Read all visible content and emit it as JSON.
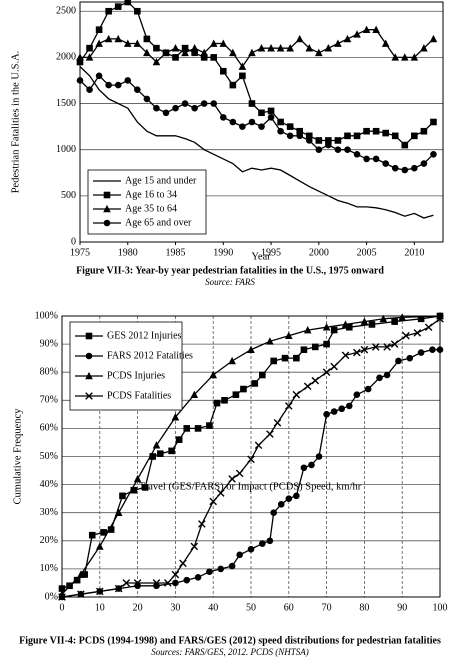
{
  "chart_data": [
    {
      "type": "line",
      "y_label": "Pedestrian Fatalities in the U.S.A.",
      "x_label": "Year",
      "caption": "Figure VII-3: Year-by year pedestrian fatalities in the U.S., 1975 onward",
      "source": "Source: FARS",
      "x": [
        1975,
        1976,
        1977,
        1978,
        1979,
        1980,
        1981,
        1982,
        1983,
        1984,
        1985,
        1986,
        1987,
        1988,
        1989,
        1990,
        1991,
        1992,
        1993,
        1994,
        1995,
        1996,
        1997,
        1998,
        1999,
        2000,
        2001,
        2002,
        2003,
        2004,
        2005,
        2006,
        2007,
        2008,
        2009,
        2010,
        2011,
        2012
      ],
      "xlim": [
        1975,
        2013
      ],
      "xticks": [
        1975,
        1980,
        1985,
        1990,
        1995,
        2000,
        2005,
        2010
      ],
      "ylim": [
        0,
        2600
      ],
      "yticks": [
        0,
        500,
        1000,
        1500,
        2000,
        2500
      ],
      "grid": "y",
      "legend": "lower left",
      "series": [
        {
          "name": "Age 15 and under",
          "color": "#000000",
          "marker": "none",
          "values": [
            1900,
            1800,
            1650,
            1550,
            1500,
            1450,
            1300,
            1200,
            1150,
            1150,
            1150,
            1120,
            1080,
            1000,
            950,
            900,
            850,
            760,
            800,
            780,
            800,
            780,
            720,
            660,
            600,
            550,
            500,
            450,
            420,
            380,
            380,
            370,
            350,
            320,
            280,
            310,
            260,
            290
          ]
        },
        {
          "name": "Age 16 to 34",
          "color": "#000000",
          "marker": "square",
          "values": [
            1950,
            2100,
            2300,
            2500,
            2550,
            2600,
            2500,
            2200,
            2100,
            2050,
            2000,
            2100,
            2050,
            2000,
            2000,
            1850,
            1700,
            1800,
            1500,
            1400,
            1420,
            1300,
            1250,
            1200,
            1150,
            1100,
            1100,
            1100,
            1150,
            1150,
            1200,
            1200,
            1180,
            1150,
            1050,
            1150,
            1200,
            1300
          ]
        },
        {
          "name": "Age 35 to 64",
          "color": "#000000",
          "marker": "triangle",
          "values": [
            2000,
            2000,
            2150,
            2200,
            2200,
            2150,
            2150,
            2050,
            1950,
            2050,
            2100,
            2050,
            2100,
            2050,
            2150,
            2150,
            2050,
            1900,
            2050,
            2100,
            2100,
            2100,
            2100,
            2200,
            2100,
            2050,
            2100,
            2150,
            2200,
            2250,
            2300,
            2300,
            2150,
            2000,
            2000,
            2000,
            2100,
            2200
          ]
        },
        {
          "name": "Age 65 and over",
          "color": "#000000",
          "marker": "circle",
          "values": [
            1750,
            1650,
            1800,
            1700,
            1700,
            1750,
            1650,
            1550,
            1450,
            1400,
            1450,
            1500,
            1450,
            1500,
            1500,
            1350,
            1300,
            1250,
            1300,
            1250,
            1350,
            1200,
            1150,
            1150,
            1100,
            1000,
            1050,
            1000,
            1000,
            950,
            900,
            900,
            850,
            800,
            780,
            800,
            850,
            950
          ]
        }
      ]
    },
    {
      "type": "line",
      "y_label": "Cumulative Frequency",
      "x_label": "Travel (GES/FARS) or Impact (PCDS) Speed, km/hr",
      "caption": "Figure VII-4: PCDS (1994-1998) and FARS/GES (2012) speed distributions for pedestrian fatalities",
      "source": "Sources: FARS/GES, 2012. PCDS (NHTSA)",
      "xlim": [
        0,
        100
      ],
      "xticks": [
        0,
        10,
        20,
        30,
        40,
        50,
        60,
        70,
        80,
        90,
        100
      ],
      "ylim": [
        0,
        100
      ],
      "yticks": [
        {
          "value": 0,
          "label": "0%"
        },
        {
          "value": 10,
          "label": "10%"
        },
        {
          "value": 20,
          "label": "20%"
        },
        {
          "value": 30,
          "label": "30%"
        },
        {
          "value": 40,
          "label": "40%"
        },
        {
          "value": 50,
          "label": "50%"
        },
        {
          "value": 60,
          "label": "60%"
        },
        {
          "value": 70,
          "label": "70%"
        },
        {
          "value": 80,
          "label": "80%"
        },
        {
          "value": 90,
          "label": "90%"
        },
        {
          "value": 100,
          "label": "100%"
        }
      ],
      "grid": "both",
      "legend": "upper left",
      "series": [
        {
          "name": "GES 2012 Injuries",
          "color": "#000000",
          "marker": "square",
          "x": [
            0,
            2,
            4,
            6,
            8,
            11,
            13,
            16,
            19,
            22,
            24,
            26,
            29,
            31,
            33,
            36,
            39,
            41,
            43,
            46,
            48,
            51,
            53,
            56,
            59,
            62,
            64,
            67,
            70,
            72,
            76,
            82,
            88,
            95,
            100
          ],
          "values": [
            3,
            4,
            6,
            8,
            22,
            23,
            24,
            36,
            38,
            39,
            50,
            51,
            52,
            56,
            60,
            60,
            61,
            69,
            70,
            72,
            74,
            76,
            79,
            84,
            85,
            85,
            88,
            89,
            90,
            95,
            96,
            97,
            98,
            99,
            100
          ]
        },
        {
          "name": "FARS 2012 Fatalities",
          "color": "#000000",
          "marker": "circle",
          "x": [
            0,
            5,
            10,
            15,
            20,
            25,
            30,
            33,
            36,
            39,
            42,
            45,
            47,
            50,
            53,
            55,
            56,
            58,
            60,
            62,
            64,
            66,
            68,
            70,
            72,
            74,
            76,
            78,
            81,
            84,
            86,
            89,
            92,
            95,
            98,
            100
          ],
          "values": [
            0,
            1,
            2,
            3,
            4,
            4,
            5,
            6,
            7,
            9,
            10,
            11,
            15,
            17,
            19,
            20,
            30,
            33,
            35,
            36,
            46,
            47,
            50,
            65,
            66,
            67,
            68,
            72,
            74,
            78,
            79,
            84,
            85,
            87,
            88,
            88
          ]
        },
        {
          "name": "PCDS Injuries",
          "color": "#000000",
          "marker": "triangle",
          "x": [
            0,
            5,
            10,
            15,
            20,
            25,
            30,
            35,
            40,
            45,
            50,
            55,
            60,
            65,
            70,
            75,
            80,
            85,
            90,
            100
          ],
          "values": [
            1,
            8,
            18,
            30,
            42,
            54,
            64,
            72,
            79,
            84,
            88,
            91,
            93,
            95,
            96,
            97,
            98,
            99,
            99.5,
            100
          ]
        },
        {
          "name": "PCDS Fatalities",
          "color": "#000000",
          "marker": "x",
          "x": [
            0,
            5,
            10,
            15,
            17,
            20,
            25,
            28,
            30,
            32,
            35,
            37,
            40,
            42,
            45,
            47,
            50,
            52,
            55,
            57,
            60,
            62,
            65,
            67,
            70,
            72,
            75,
            78,
            80,
            83,
            86,
            88,
            91,
            94,
            97,
            100
          ],
          "values": [
            0,
            1,
            2,
            3,
            5,
            5,
            5,
            5,
            8,
            12,
            18,
            26,
            34,
            37,
            42,
            44,
            49,
            54,
            58,
            62,
            68,
            72,
            75,
            77,
            80,
            82,
            86,
            87,
            88,
            89,
            89,
            90,
            93,
            94,
            96,
            99
          ]
        }
      ]
    }
  ]
}
